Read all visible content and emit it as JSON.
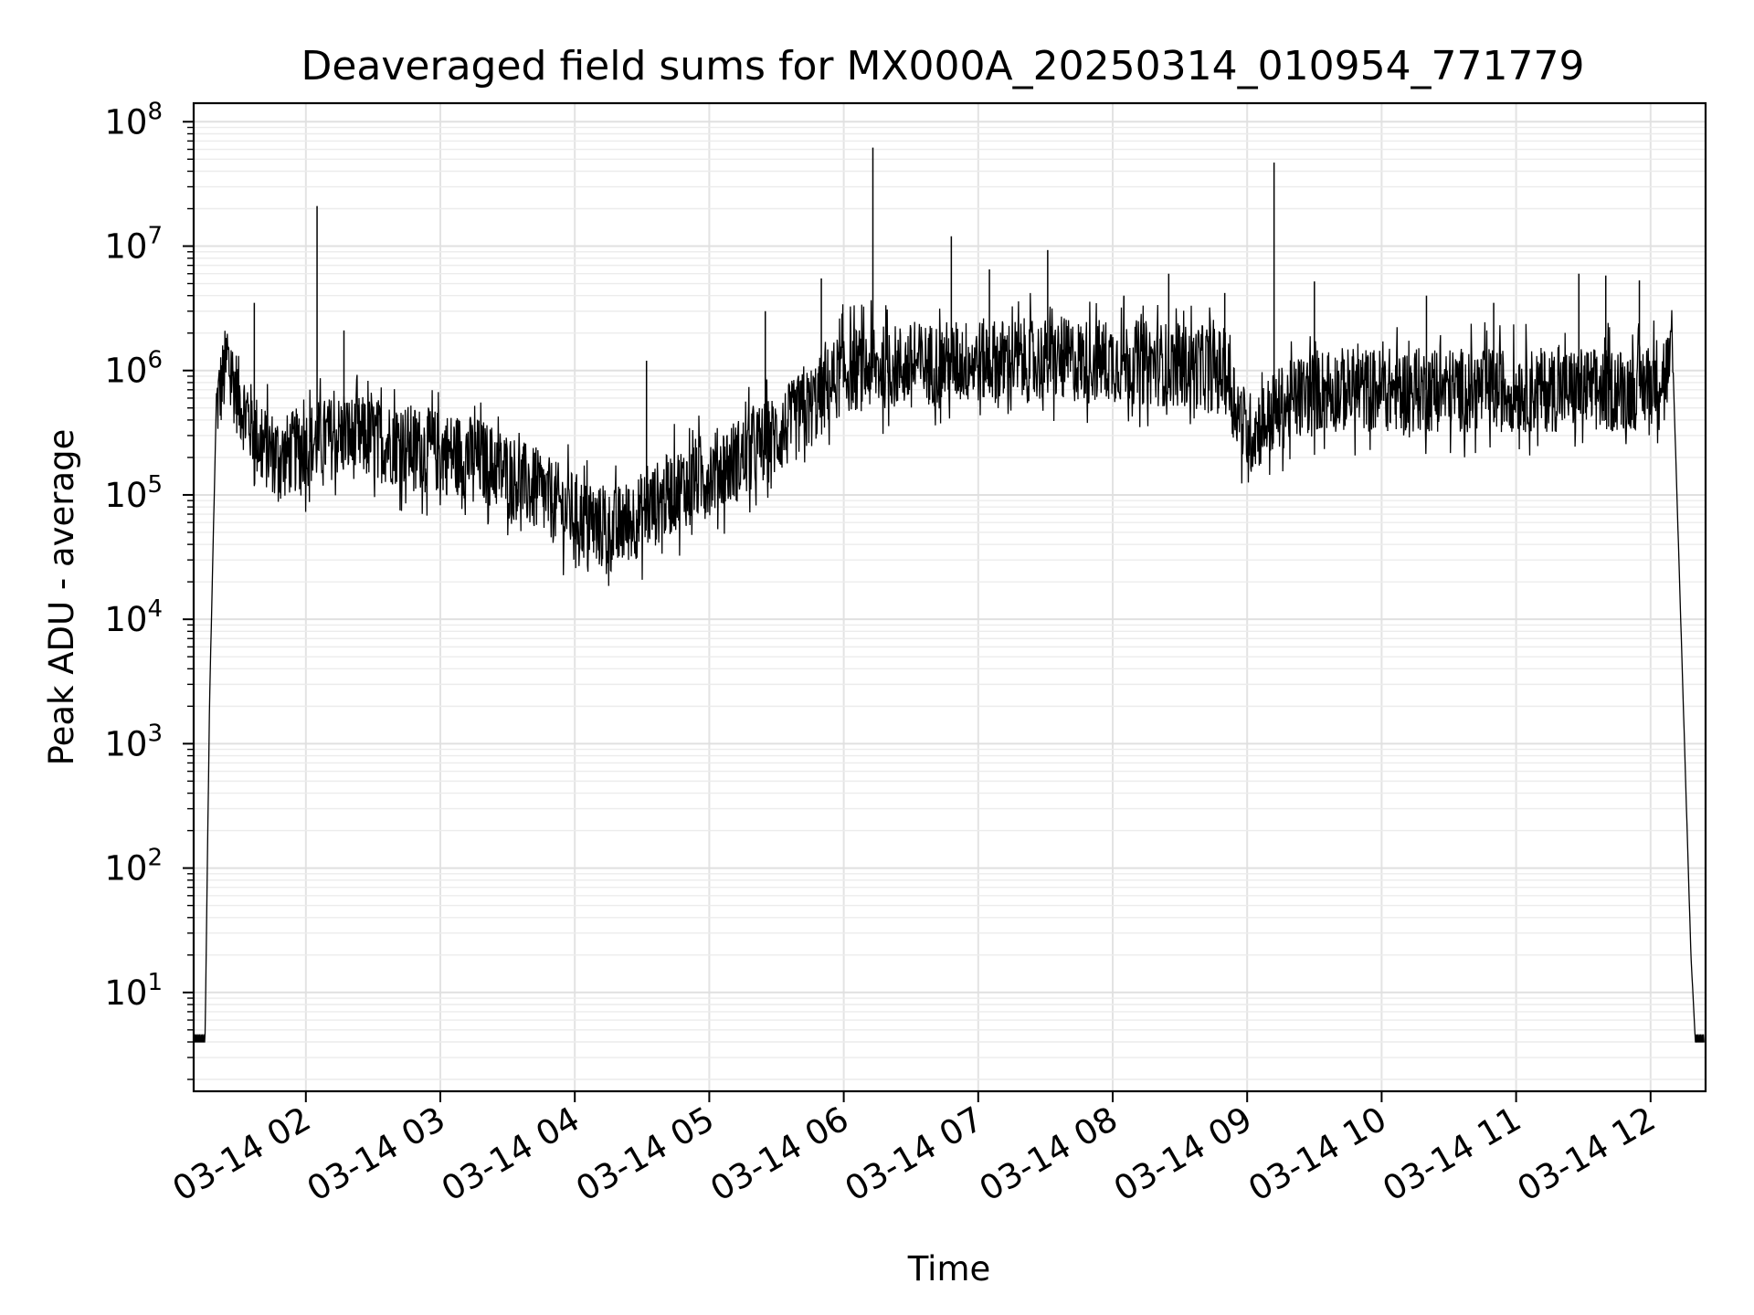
{
  "chart_data": {
    "type": "line",
    "title": "Deaveraged field sums for MX000A_20250314_010954_771779",
    "xlabel": "Time",
    "ylabel": "Peak ADU - average",
    "yscale": "log",
    "xlim": [
      "03-14 01:10",
      "03-14 12:24"
    ],
    "ylim": [
      1.6,
      140000000.0
    ],
    "grid": true,
    "x_ticks": [
      "03-14 02",
      "03-14 03",
      "03-14 04",
      "03-14 05",
      "03-14 06",
      "03-14 07",
      "03-14 08",
      "03-14 09",
      "03-14 10",
      "03-14 11",
      "03-14 12"
    ],
    "y_ticks": [
      {
        "base": "10",
        "exp": "1"
      },
      {
        "base": "10",
        "exp": "2"
      },
      {
        "base": "10",
        "exp": "3"
      },
      {
        "base": "10",
        "exp": "4"
      },
      {
        "base": "10",
        "exp": "5"
      },
      {
        "base": "10",
        "exp": "6"
      },
      {
        "base": "10",
        "exp": "7"
      },
      {
        "base": "10",
        "exp": "8"
      }
    ],
    "series_color": "#000000",
    "series": [
      {
        "x": [
          "03-14 01:10",
          "03-14 01:15",
          "03-14 01:17",
          "03-14 01:20",
          "03-14 01:25",
          "03-14 01:30",
          "03-14 01:40",
          "03-14 01:50",
          "03-14 02:00",
          "03-14 02:15",
          "03-14 02:30",
          "03-14 02:45",
          "03-14 03:00",
          "03-14 03:15",
          "03-14 03:30",
          "03-14 03:45",
          "03-14 04:00",
          "03-14 04:15",
          "03-14 04:30",
          "03-14 04:45",
          "03-14 05:00",
          "03-14 05:15",
          "03-14 05:30",
          "03-14 05:45",
          "03-14 06:00",
          "03-14 06:30",
          "03-14 07:00",
          "03-14 07:30",
          "03-14 08:00",
          "03-14 08:30",
          "03-14 08:50",
          "03-14 09:00",
          "03-14 09:15",
          "03-14 09:30",
          "03-14 10:00",
          "03-14 10:30",
          "03-14 11:00",
          "03-14 11:30",
          "03-14 11:50",
          "03-14 12:00",
          "03-14 12:10",
          "03-14 12:18",
          "03-14 12:20",
          "03-14 12:24"
        ],
        "y": [
          4,
          4,
          2000,
          500000,
          1200000,
          600000,
          250000,
          200000,
          250000,
          300000,
          280000,
          250000,
          220000,
          200000,
          150000,
          100000,
          70000,
          50000,
          70000,
          110000,
          150000,
          200000,
          300000,
          500000,
          1000000,
          1100000,
          1200000,
          1200000,
          1200000,
          1100000,
          1000000,
          300000,
          500000,
          700000,
          700000,
          700000,
          700000,
          700000,
          700000,
          800000,
          1100000,
          20,
          4,
          4
        ],
        "spikes": [
          {
            "x": "03-14 01:37",
            "y": 3500000
          },
          {
            "x": "03-14 02:05",
            "y": 21000000
          },
          {
            "x": "03-14 02:17",
            "y": 2100000
          },
          {
            "x": "03-14 04:32",
            "y": 1200000
          },
          {
            "x": "03-14 05:25",
            "y": 3000000
          },
          {
            "x": "03-14 05:50",
            "y": 5500000
          },
          {
            "x": "03-14 06:13",
            "y": 62000000
          },
          {
            "x": "03-14 06:48",
            "y": 12000000
          },
          {
            "x": "03-14 07:05",
            "y": 6500000
          },
          {
            "x": "03-14 07:31",
            "y": 9300000
          },
          {
            "x": "03-14 08:05",
            "y": 4000000
          },
          {
            "x": "03-14 08:25",
            "y": 6000000
          },
          {
            "x": "03-14 08:50",
            "y": 4200000
          },
          {
            "x": "03-14 09:12",
            "y": 47000000
          },
          {
            "x": "03-14 09:30",
            "y": 5200000
          },
          {
            "x": "03-14 10:20",
            "y": 4000000
          },
          {
            "x": "03-14 10:50",
            "y": 3500000
          },
          {
            "x": "03-14 11:28",
            "y": 6000000
          },
          {
            "x": "03-14 11:40",
            "y": 5800000
          },
          {
            "x": "03-14 11:55",
            "y": 5300000
          }
        ]
      }
    ]
  }
}
